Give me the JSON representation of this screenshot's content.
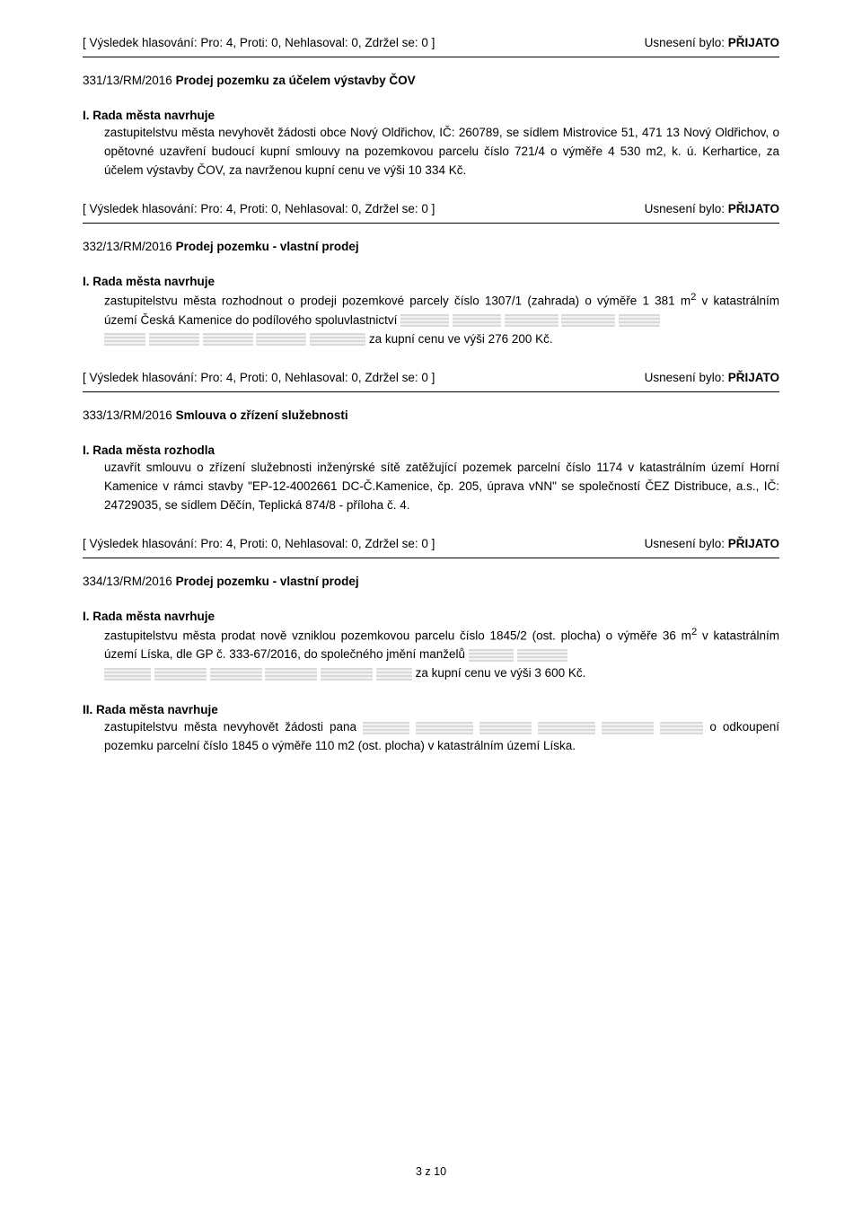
{
  "voteRow": {
    "left": "[ Výsledek hlasování: Pro: 4, Proti: 0, Nehlasoval: 0, Zdržel se: 0 ]",
    "rightPrefix": "Usnesení bylo: ",
    "rightStatus": "PŘIJATO"
  },
  "sections": [
    {
      "num": "331/13/RM/2016 ",
      "title": "Prodej pozemku za účelem výstavby ČOV",
      "lead": "I. Rada města navrhuje",
      "paraHtml": "zastupitelstvu města nevyhovět žádosti obce Nový Oldřichov, IČ: 260789, se sídlem Mistrovice 51, 471 13 Nový Oldřichov, o opětovné uzavření budoucí kupní smlouvy na pozemkovou parcelu číslo 721/4 o výměře 4 530 m2, k. ú. Kerhartice, za účelem výstavby ČOV, za navrženou kupní cenu ve výši 10 334 Kč."
    },
    {
      "num": "332/13/RM/2016 ",
      "title": "Prodej pozemku - vlastní prodej",
      "lead": "I. Rada města navrhuje",
      "paraHtml": "zastupitelstvu města rozhodnout o prodeji pozemkové parcely číslo 1307/1 (zahrada) o výměře 1 381 m<sup>2</sup> v katastrálním území Česká Kamenice do podílového spoluvlastnictví <span class=\"redact\" style=\"width:54px\"></span> <span class=\"redact\" style=\"width:54px\"></span> <span class=\"redact\" style=\"width:60px\"></span> <span class=\"redact\" style=\"width:60px\"></span> <span class=\"redact\" style=\"width:46px\"></span><br><span class=\"redact\" style=\"width:46px\"></span> <span class=\"redact\" style=\"width:56px\"></span> <span class=\"redact\" style=\"width:56px\"></span> <span class=\"redact\" style=\"width:56px\"></span> <span class=\"redact\" style=\"width:62px\"></span> za kupní cenu ve výši 276 200 Kč."
    },
    {
      "num": "333/13/RM/2016 ",
      "title": "Smlouva o zřízení služebnosti",
      "lead": "I. Rada města rozhodla",
      "paraHtml": "uzavřít smlouvu o zřízení služebnosti inženýrské sítě zatěžující pozemek parcelní číslo 1174 v katastrálním území Horní Kamenice v rámci stavby \"EP-12-4002661 DC-Č.Kamenice, čp. 205, úprava vNN\" se společností ČEZ Distribuce, a.s., IČ: 24729035, se sídlem Děčín, Teplická 874/8 - příloha č. 4."
    },
    {
      "num": "334/13/RM/2016 ",
      "title": "Prodej pozemku - vlastní prodej",
      "lead": "I. Rada města navrhuje",
      "paraHtml": "zastupitelstvu města prodat nově vzniklou pozemkovou parcelu číslo 1845/2 (ost. plocha) o výměře 36 m<sup>2</sup> v katastrálním území Líska, dle GP č. 333-67/2016, do společného jmění manželů <span class=\"redact\" style=\"width:50px\"></span> <span class=\"redact\" style=\"width:56px\"></span><br><span class=\"redact\" style=\"width:52px\"></span> <span class=\"redact\" style=\"width:58px\"></span> <span class=\"redact\" style=\"width:58px\"></span> <span class=\"redact\" style=\"width:58px\"></span> <span class=\"redact\" style=\"width:58px\"></span> <span class=\"redact\" style=\"width:40px\"></span> za kupní cenu ve výši 3 600 Kč.",
      "lead2": "II. Rada města navrhuje",
      "paraHtml2": "zastupitelstvu města nevyhovět žádosti pana <span class=\"redact\" style=\"width:52px\"></span> <span class=\"redact\" style=\"width:64px\"></span> <span class=\"redact\" style=\"width:58px\"></span> <span class=\"redact\" style=\"width:64px\"></span> <span class=\"redact\" style=\"width:58px\"></span> <span class=\"redact\" style=\"width:48px\"></span> o odkoupení pozemku parcelní číslo 1845 o výměře 110 m2 (ost. plocha) v katastrálním území Líska."
    }
  ],
  "footer": "3 z 10"
}
